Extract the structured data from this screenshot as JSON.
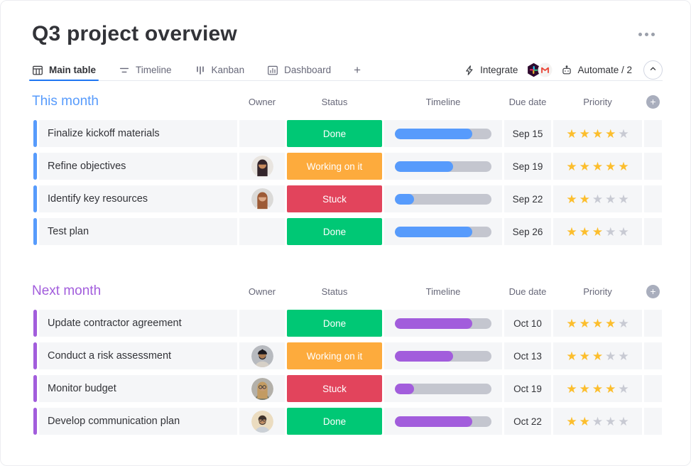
{
  "page": {
    "title": "Q3 project overview"
  },
  "tabs": {
    "items": [
      {
        "label": "Main table",
        "icon": "table",
        "active": true
      },
      {
        "label": "Timeline",
        "icon": "timeline",
        "active": false
      },
      {
        "label": "Kanban",
        "icon": "kanban",
        "active": false
      },
      {
        "label": "Dashboard",
        "icon": "dashboard",
        "active": false
      }
    ],
    "add_label": "+"
  },
  "toolbar": {
    "integrate_label": "Integrate",
    "integration_badges": [
      "slack",
      "gmail"
    ],
    "automate_label": "Automate / 2"
  },
  "board": {
    "columns": [
      "Owner",
      "Status",
      "Timeline",
      "Due date",
      "Priority"
    ],
    "priority_max": 5,
    "colors": {
      "done": "#00C875",
      "working": "#FDAB3D",
      "stuck": "#E2445C",
      "star_filled": "#FCBE2D",
      "star_empty": "#C8CAD3",
      "timeline_track": "#C4C6CF",
      "group_blue": "#579BFC",
      "group_purple": "#A25DDC"
    },
    "groups": [
      {
        "name": "This month",
        "color": "#579BFC",
        "rows": [
          {
            "task": "Finalize kickoff materials",
            "owner": null,
            "status": "Done",
            "status_key": "done",
            "timeline_pct": 80,
            "due_date": "Sep 15",
            "priority": 4
          },
          {
            "task": "Refine objectives",
            "owner": "woman-dark-long-hair",
            "status": "Working on it",
            "status_key": "working",
            "timeline_pct": 60,
            "due_date": "Sep 19",
            "priority": 5
          },
          {
            "task": "Identify key resources",
            "owner": "woman-auburn-curly-hair",
            "status": "Stuck",
            "status_key": "stuck",
            "timeline_pct": 20,
            "due_date": "Sep 22",
            "priority": 2
          },
          {
            "task": "Test plan",
            "owner": null,
            "status": "Done",
            "status_key": "done",
            "timeline_pct": 80,
            "due_date": "Sep 26",
            "priority": 3
          }
        ]
      },
      {
        "name": "Next month",
        "color": "#A25DDC",
        "rows": [
          {
            "task": "Update contractor agreement",
            "owner": null,
            "status": "Done",
            "status_key": "done",
            "timeline_pct": 80,
            "due_date": "Oct 10",
            "priority": 4
          },
          {
            "task": "Conduct a risk assessment",
            "owner": "man-turban-beard",
            "status": "Working on it",
            "status_key": "working",
            "timeline_pct": 60,
            "due_date": "Oct 13",
            "priority": 3
          },
          {
            "task": "Monitor budget",
            "owner": "woman-blonde-glasses",
            "status": "Stuck",
            "status_key": "stuck",
            "timeline_pct": 20,
            "due_date": "Oct 19",
            "priority": 4
          },
          {
            "task": "Develop communication plan",
            "owner": "man-glasses-beard",
            "status": "Done",
            "status_key": "done",
            "timeline_pct": 80,
            "due_date": "Oct 22",
            "priority": 2
          }
        ]
      }
    ]
  },
  "avatars": {
    "woman-dark-long-hair": {
      "bg": "#E9E5E0",
      "hair": "#33252B",
      "skin": "#C68A5E",
      "shirt": "#F4F2EF",
      "long_hair": true,
      "turban": false,
      "beard": null,
      "glasses": false
    },
    "woman-auburn-curly-hair": {
      "bg": "#DBDAD8",
      "hair": "#9D5B36",
      "skin": "#DCA987",
      "shirt": "#F6F5F2",
      "long_hair": true,
      "turban": false,
      "beard": null,
      "glasses": false
    },
    "man-turban-beard": {
      "bg": "#B7BABF",
      "hair": "#1B181D",
      "skin": "#AB7B52",
      "shirt": "#D6D0C7",
      "long_hair": false,
      "turban": true,
      "beard": "#241F23",
      "glasses": false
    },
    "woman-blonde-glasses": {
      "bg": "#B3B0A9",
      "hair": "#C39B62",
      "skin": "#C89C74",
      "shirt": "#75796A",
      "long_hair": true,
      "turban": false,
      "beard": null,
      "glasses": true
    },
    "man-glasses-beard": {
      "bg": "#EBDCC0",
      "hair": "#42332A",
      "skin": "#C28E64",
      "shirt": "#CBD0D6",
      "long_hair": false,
      "turban": false,
      "beard": "#4E3C2F",
      "glasses": true
    }
  }
}
